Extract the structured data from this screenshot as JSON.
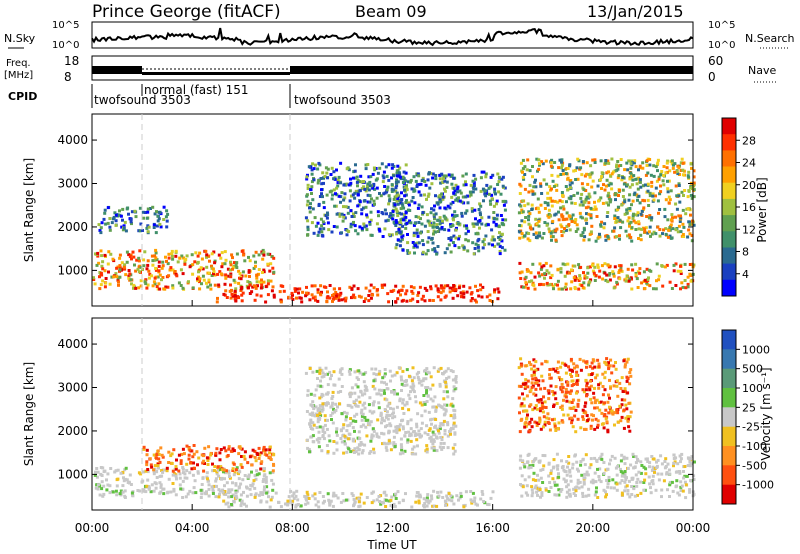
{
  "header": {
    "station": "Prince George (fitACF)",
    "beam": "Beam 09",
    "date": "13/Jan/2015"
  },
  "strips": {
    "nsky_label": "N.Sky",
    "nsearch_label": "N.Search",
    "nsky_ticks": [
      "10^5",
      "10^0"
    ],
    "nsearch_ticks": [
      "10^5",
      "10^0"
    ],
    "freq_label_1": "Freq.",
    "freq_label_2": "[MHz]",
    "freq_ticks": [
      "18",
      "8"
    ],
    "nave_label": "Nave",
    "nave_ticks": [
      "60",
      "0"
    ],
    "cpid_label": "CPID",
    "cpid_segments": [
      {
        "label": "twofsound 3503",
        "start_h": 0
      },
      {
        "label": "normal (fast) 151",
        "start_h": 2
      },
      {
        "label": "twofsound 3503",
        "start_h": 8
      }
    ]
  },
  "chart_data": [
    {
      "type": "heatmap",
      "title": "",
      "ylabel": "Slant Range [km]",
      "xlabel": "",
      "xlim": [
        0,
        24
      ],
      "ylim": [
        180,
        4600
      ],
      "yticks": [
        "1000",
        "2000",
        "3000",
        "4000"
      ],
      "colorbar": {
        "label": "Power [dB]",
        "ticks": [
          "28",
          "24",
          "20",
          "16",
          "12",
          "8",
          "4"
        ],
        "colors": [
          "#e00000",
          "#ff3000",
          "#ff7000",
          "#ffa000",
          "#f0d020",
          "#a0c040",
          "#60a050",
          "#40906a",
          "#2a6a90",
          "#1a40c0",
          "#0000ff"
        ]
      },
      "regions": [
        {
          "t0": 0.0,
          "t1": 7.2,
          "r0": 600,
          "r1": 1500,
          "level": "mid-high"
        },
        {
          "t0": 0.2,
          "t1": 3.0,
          "r0": 1900,
          "r1": 2500,
          "level": "low"
        },
        {
          "t0": 4.8,
          "t1": 16.2,
          "r0": 300,
          "r1": 700,
          "level": "high"
        },
        {
          "t0": 8.5,
          "t1": 12.5,
          "r0": 1800,
          "r1": 3500,
          "level": "low"
        },
        {
          "t0": 12.0,
          "t1": 16.5,
          "r0": 1400,
          "r1": 3300,
          "level": "low"
        },
        {
          "t0": 17.0,
          "t1": 24.0,
          "r0": 600,
          "r1": 1200,
          "level": "mid-high"
        },
        {
          "t0": 17.0,
          "t1": 24.0,
          "r0": 1700,
          "r1": 3600,
          "level": "mid"
        }
      ]
    },
    {
      "type": "heatmap",
      "title": "",
      "ylabel": "Slant Range [km]",
      "xlabel": "Time UT",
      "xlim": [
        0,
        24
      ],
      "ylim": [
        180,
        4600
      ],
      "yticks": [
        "1000",
        "2000",
        "3000",
        "4000"
      ],
      "xticks": [
        "00:00",
        "04:00",
        "08:00",
        "12:00",
        "16:00",
        "20:00",
        "00:00"
      ],
      "colorbar": {
        "label": "Velocity [m s⁻¹]",
        "ticks": [
          "1000",
          "500",
          "100",
          "25",
          "-25",
          "-100",
          "-500",
          "-1000"
        ],
        "colors": [
          "#2050c0",
          "#3878b0",
          "#5a9a78",
          "#60c040",
          "#c8c8c8",
          "#f0c020",
          "#ff9020",
          "#ff5010",
          "#e00000"
        ]
      },
      "regions": [
        {
          "t0": 0.0,
          "t1": 7.2,
          "r0": 500,
          "r1": 1200,
          "level": "ground-scatter"
        },
        {
          "t0": 2.0,
          "t1": 7.2,
          "r0": 1100,
          "r1": 1700,
          "level": "negative"
        },
        {
          "t0": 5.0,
          "t1": 16.0,
          "r0": 280,
          "r1": 650,
          "level": "ground-scatter"
        },
        {
          "t0": 8.5,
          "t1": 14.5,
          "r0": 1500,
          "r1": 3500,
          "level": "ground-scatter"
        },
        {
          "t0": 17.0,
          "t1": 21.5,
          "r0": 2000,
          "r1": 3700,
          "level": "negative"
        },
        {
          "t0": 17.0,
          "t1": 24.0,
          "r0": 500,
          "r1": 1500,
          "level": "ground-scatter"
        }
      ]
    }
  ]
}
